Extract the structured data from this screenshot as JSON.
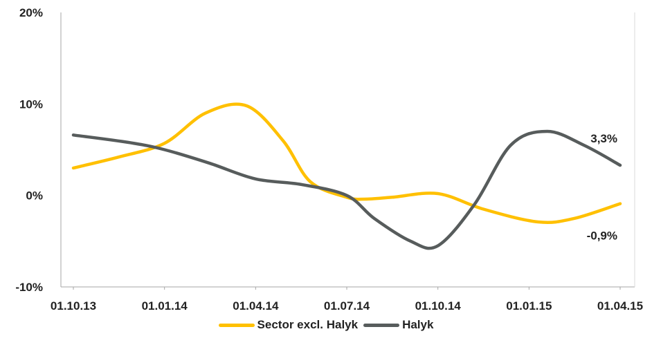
{
  "chart_data": {
    "type": "line",
    "title": "",
    "xlabel": "",
    "ylabel": "",
    "categories": [
      "01.10.13",
      "01.01.14",
      "01.04.14",
      "01.07.14",
      "01.10.14",
      "01.01.15",
      "01.04.15"
    ],
    "y_ticks": [
      "20%",
      "10%",
      "0%",
      "-10%"
    ],
    "ylim": [
      -10,
      20
    ],
    "grid": false,
    "legend_position": "bottom",
    "series": [
      {
        "name": "Sector excl. Halyk",
        "color": "#FFC000",
        "x": [
          0,
          0.5,
          1.0,
          1.45,
          1.9,
          2.3,
          2.6,
          3.0,
          3.2,
          3.5,
          4.0,
          4.5,
          5.1,
          5.5,
          6.0
        ],
        "values": [
          3.0,
          4.2,
          5.7,
          9.0,
          9.8,
          6.0,
          1.5,
          -0.2,
          -0.4,
          -0.2,
          0.2,
          -1.5,
          -2.9,
          -2.5,
          -0.9
        ]
      },
      {
        "name": "Halyk",
        "color": "#575C5C",
        "x": [
          0,
          0.6,
          1.0,
          1.5,
          2.0,
          2.5,
          3.0,
          3.3,
          3.7,
          4.0,
          4.4,
          4.8,
          5.2,
          5.6,
          6.0
        ],
        "values": [
          6.6,
          5.8,
          5.0,
          3.5,
          1.8,
          1.2,
          0.0,
          -2.5,
          -5.0,
          -5.5,
          -1.0,
          5.5,
          7.0,
          5.5,
          3.3
        ]
      }
    ],
    "annotations": [
      {
        "text": "3,3%",
        "series": 1,
        "x": 6.0,
        "y": 3.3,
        "position": "above-left"
      },
      {
        "text": "-0,9%",
        "series": 0,
        "x": 6.0,
        "y": -0.9,
        "position": "below-left"
      }
    ]
  }
}
